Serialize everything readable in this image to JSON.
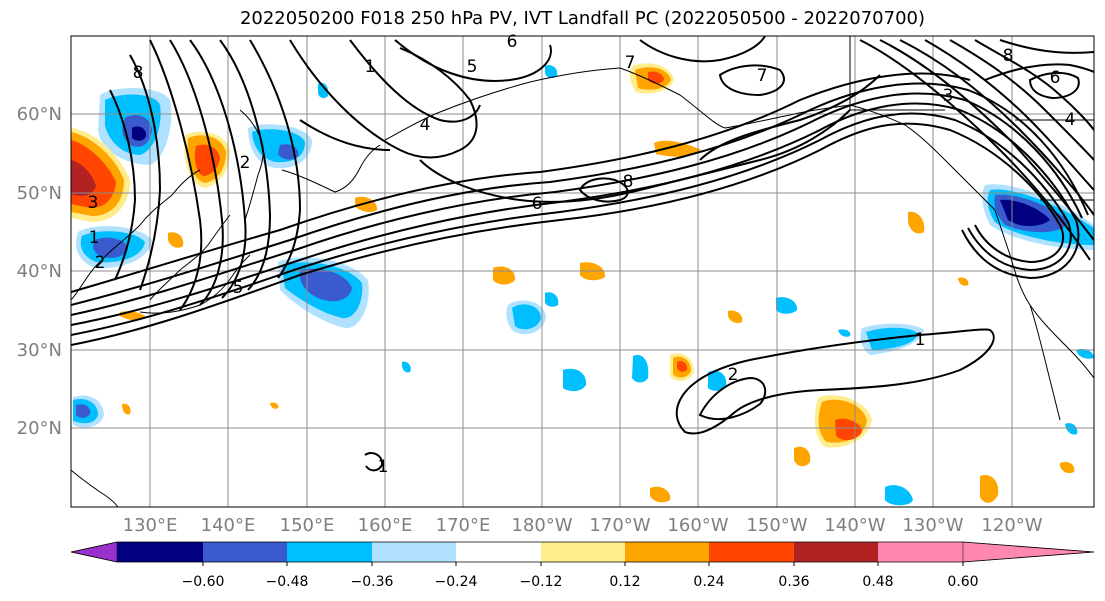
{
  "title": "2022050200 F018 250 hPa PV, IVT Landfall PC (2022050500 - 2022070700)",
  "lat_labels": [
    "60°N",
    "50°N",
    "40°N",
    "30°N",
    "20°N"
  ],
  "lon_labels": [
    "130°E",
    "140°E",
    "150°E",
    "160°E",
    "170°E",
    "180°W",
    "170°W",
    "160°W",
    "150°W",
    "140°W",
    "130°W",
    "120°W"
  ],
  "colorbar": {
    "colors": [
      "#9932cc",
      "#000080",
      "#3a5bcd",
      "#00bfff",
      "#b0e2ff",
      "#ffffff",
      "#ffec8b",
      "#ffa500",
      "#ff4500",
      "#b22222",
      "#ff88b0"
    ],
    "tick_labels": [
      "−0.60",
      "−0.48",
      "−0.36",
      "−0.24",
      "−0.12",
      "0.12",
      "0.24",
      "0.36",
      "0.48",
      "0.60"
    ]
  },
  "contour_labels": [
    "6",
    "1",
    "5",
    "7",
    "8",
    "4",
    "3",
    "2",
    "1",
    "6",
    "5",
    "8",
    "7",
    "6",
    "4",
    "3",
    "1",
    "2",
    "2",
    "1",
    "8"
  ]
}
